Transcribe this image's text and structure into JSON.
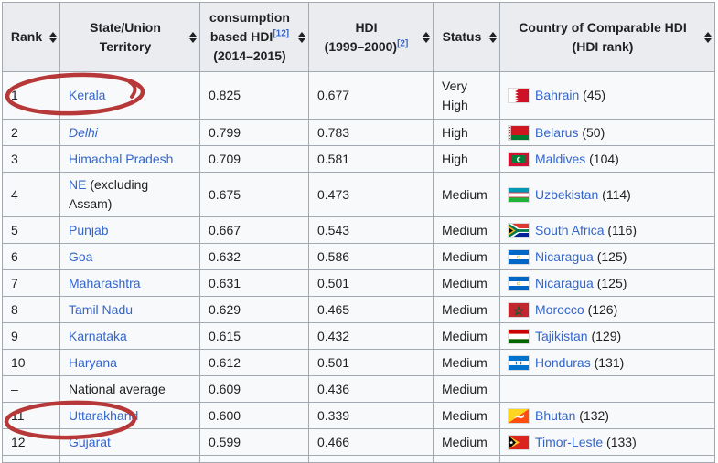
{
  "colors": {
    "link": "#3366cc",
    "header_bg": "#eaecf0",
    "row_bg": "#f8f9fa",
    "border": "#a2a9b1",
    "text": "#202122",
    "annotation_red": "#b63838"
  },
  "table": {
    "headers": [
      {
        "name": "rank",
        "sortable": true,
        "lines": [
          {
            "text": "Rank"
          }
        ]
      },
      {
        "name": "state",
        "sortable": true,
        "lines": [
          {
            "text": "State/Union"
          },
          {
            "text": "Territory"
          }
        ]
      },
      {
        "name": "hdi-2014",
        "sortable": true,
        "lines": [
          {
            "text": "consumption"
          },
          {
            "text": "based HDI",
            "sup": "[12]"
          },
          {
            "text": "(2014–2015)"
          }
        ]
      },
      {
        "name": "hdi-1999",
        "sortable": true,
        "lines": [
          {
            "text": "HDI"
          },
          {
            "text": "(1999–2000)",
            "sup": "[2]"
          }
        ]
      },
      {
        "name": "status",
        "sortable": true,
        "lines": [
          {
            "text": "Status"
          }
        ]
      },
      {
        "name": "country",
        "sortable": true,
        "lines": [
          {
            "text": "Country of Comparable HDI"
          },
          {
            "text": "(HDI rank)"
          }
        ]
      }
    ],
    "rows": [
      {
        "rank": "1",
        "state": {
          "text": "Kerala",
          "link": true,
          "italic": false
        },
        "hdi_2014": "0.825",
        "hdi_1999": "0.677",
        "status": "Very High",
        "country": {
          "flag": "bahrain",
          "name": "Bahrain",
          "rank": "(45)"
        },
        "circled": true,
        "tall": true
      },
      {
        "rank": "2",
        "state": {
          "text": "Delhi",
          "link": true,
          "italic": true
        },
        "hdi_2014": "0.799",
        "hdi_1999": "0.783",
        "status": "High",
        "country": {
          "flag": "belarus",
          "name": "Belarus",
          "rank": "(50)"
        }
      },
      {
        "rank": "3",
        "state": {
          "text": "Himachal Pradesh",
          "link": true,
          "italic": false
        },
        "hdi_2014": "0.709",
        "hdi_1999": "0.581",
        "status": "High",
        "country": {
          "flag": "maldives",
          "name": "Maldives",
          "rank": "(104)"
        }
      },
      {
        "rank": "4",
        "state": {
          "text": "NE",
          "link": true,
          "italic": false,
          "suffix": " (excluding Assam)"
        },
        "hdi_2014": "0.675",
        "hdi_1999": "0.473",
        "status": "Medium",
        "country": {
          "flag": "uzbekistan",
          "name": "Uzbekistan",
          "rank": "(114)"
        }
      },
      {
        "rank": "5",
        "state": {
          "text": "Punjab",
          "link": true,
          "italic": false
        },
        "hdi_2014": "0.667",
        "hdi_1999": "0.543",
        "status": "Medium",
        "country": {
          "flag": "south-africa",
          "name": "South Africa",
          "rank": "(116)"
        }
      },
      {
        "rank": "6",
        "state": {
          "text": "Goa",
          "link": true,
          "italic": false
        },
        "hdi_2014": "0.632",
        "hdi_1999": "0.586",
        "status": "Medium",
        "country": {
          "flag": "nicaragua",
          "name": "Nicaragua",
          "rank": "(125)"
        }
      },
      {
        "rank": "7",
        "state": {
          "text": "Maharashtra",
          "link": true,
          "italic": false
        },
        "hdi_2014": "0.631",
        "hdi_1999": "0.501",
        "status": "Medium",
        "country": {
          "flag": "nicaragua",
          "name": "Nicaragua",
          "rank": "(125)"
        }
      },
      {
        "rank": "8",
        "state": {
          "text": "Tamil Nadu",
          "link": true,
          "italic": false
        },
        "hdi_2014": "0.629",
        "hdi_1999": "0.465",
        "status": "Medium",
        "country": {
          "flag": "morocco",
          "name": "Morocco",
          "rank": "(126)"
        }
      },
      {
        "rank": "9",
        "state": {
          "text": "Karnataka",
          "link": true,
          "italic": false
        },
        "hdi_2014": "0.615",
        "hdi_1999": "0.432",
        "status": "Medium",
        "country": {
          "flag": "tajikistan",
          "name": "Tajikistan",
          "rank": "(129)"
        }
      },
      {
        "rank": "10",
        "state": {
          "text": "Haryana",
          "link": true,
          "italic": false
        },
        "hdi_2014": "0.612",
        "hdi_1999": "0.501",
        "status": "Medium",
        "country": {
          "flag": "honduras",
          "name": "Honduras",
          "rank": "(131)"
        }
      },
      {
        "rank": "–",
        "state": {
          "text": "National average",
          "link": false,
          "italic": false
        },
        "hdi_2014": "0.609",
        "hdi_1999": "0.436",
        "status": "Medium",
        "country": null
      },
      {
        "rank": "11",
        "state": {
          "text": "Uttarakhand",
          "link": true,
          "italic": false
        },
        "hdi_2014": "0.600",
        "hdi_1999": "0.339",
        "status": "Medium",
        "country": {
          "flag": "bhutan",
          "name": "Bhutan",
          "rank": "(132)"
        }
      },
      {
        "rank": "12",
        "state": {
          "text": "Gujarat",
          "link": true,
          "italic": false
        },
        "hdi_2014": "0.599",
        "hdi_1999": "0.466",
        "status": "Medium",
        "country": {
          "flag": "timor-leste",
          "name": "Timor-Leste",
          "rank": "(133)"
        },
        "circled": true
      }
    ]
  },
  "annotations": [
    {
      "name": "annotation-circle-kerala",
      "target": "Kerala"
    },
    {
      "name": "annotation-circle-gujarat",
      "target": "Gujarat"
    }
  ]
}
